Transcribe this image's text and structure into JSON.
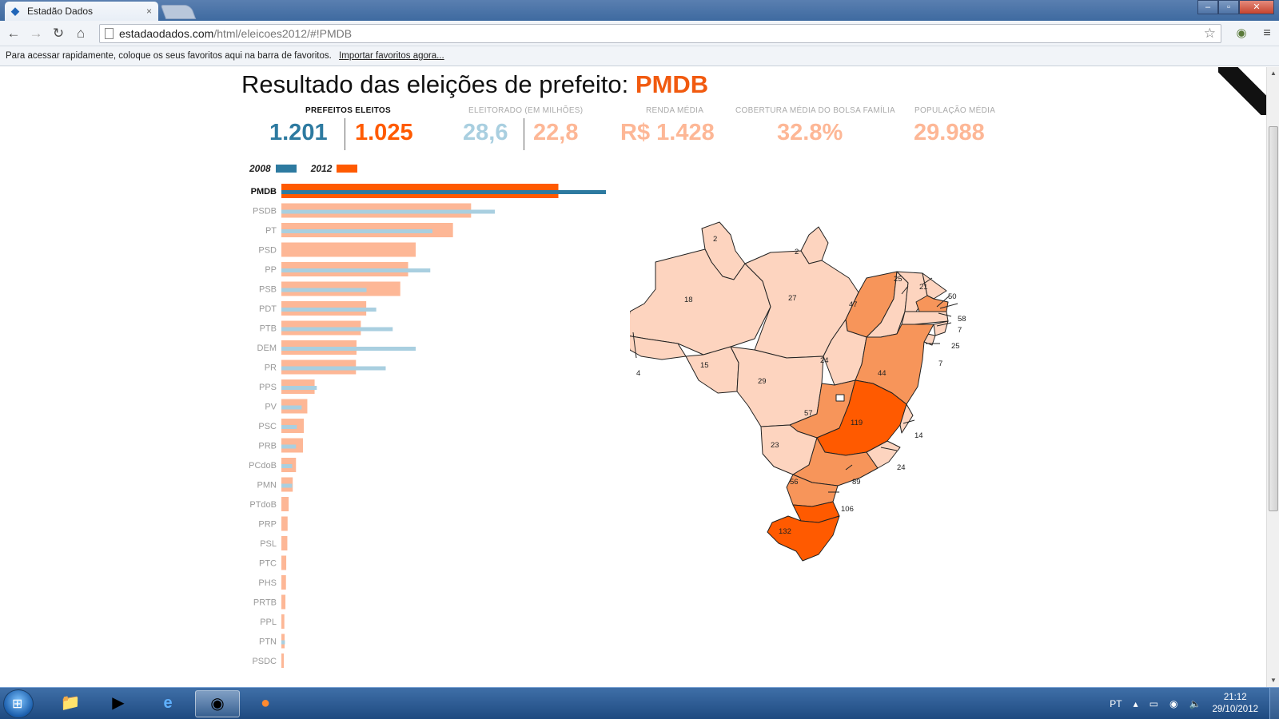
{
  "browser": {
    "tab_title": "Estadão Dados",
    "tab_close": "×",
    "url_host": "estadaodados.com",
    "url_path": "/html/eleicoes2012/#!PMDB",
    "bookmarks_text": "Para acessar rapidamente, coloque os seus favoritos aqui na barra de favoritos.",
    "bookmarks_link": "Importar favoritos agora..."
  },
  "page": {
    "title_prefix": "Resultado das eleições de prefeito:",
    "title_party": "PMDB",
    "stats": {
      "prefeitos_label": "PREFEITOS ELEITOS",
      "prefeitos_2008": "1.201",
      "prefeitos_2012": "1.025",
      "eleitorado_label": "ELEITORADO (EM MILHÕES)",
      "eleitorado_2008": "28,6",
      "eleitorado_2012": "22,8",
      "renda_label": "RENDA MÉDIA",
      "renda_value": "R$ 1.428",
      "bolsa_label": "COBERTURA MÉDIA DO BOLSA FAMÍLIA",
      "bolsa_value": "32.8%",
      "populacao_label": "POPULAÇÃO MÉDIA",
      "populacao_value": "29.988"
    },
    "legend": {
      "label_2008": "2008",
      "label_2012": "2012"
    }
  },
  "colors": {
    "blue_dark": "#2d7aa0",
    "blue_light": "#a9cfe0",
    "orange_strong": "#ff5a00",
    "orange_light": "#fdb796",
    "map_pale": "#fdd4bf",
    "map_mid": "#f7955a",
    "map_strong": "#ff5a00"
  },
  "chart_data": {
    "type": "bar",
    "categories": [
      "PMDB",
      "PSDB",
      "PT",
      "PSD",
      "PP",
      "PSB",
      "PDT",
      "PTB",
      "DEM",
      "PR",
      "PPS",
      "PV",
      "PSC",
      "PRB",
      "PCdoB",
      "PMN",
      "PTdoB",
      "PRP",
      "PSL",
      "PTC",
      "PHS",
      "PRTB",
      "PPL",
      "PTN",
      "PSDC"
    ],
    "series": [
      {
        "name": "2008",
        "values": [
          1201,
          790,
          559,
          0,
          551,
          315,
          351,
          412,
          497,
          386,
          131,
          75,
          57,
          54,
          40,
          40,
          0,
          0,
          0,
          0,
          0,
          0,
          0,
          13,
          0
        ]
      },
      {
        "name": "2012",
        "values": [
          1025,
          702,
          635,
          497,
          469,
          440,
          314,
          294,
          278,
          276,
          123,
          96,
          83,
          80,
          54,
          42,
          27,
          23,
          22,
          18,
          17,
          15,
          11,
          12,
          9
        ]
      }
    ],
    "highlight": "PMDB"
  },
  "map": {
    "labels": [
      "2",
      "2",
      "18",
      "27",
      "25",
      "21",
      "50",
      "58",
      "47",
      "7",
      "25",
      "24",
      "15",
      "4",
      "7",
      "29",
      "44",
      "57",
      "119",
      "14",
      "23",
      "24",
      "56",
      "89",
      "106",
      "132"
    ]
  },
  "taskbar": {
    "lang": "PT",
    "time": "21:12",
    "date": "29/10/2012"
  }
}
